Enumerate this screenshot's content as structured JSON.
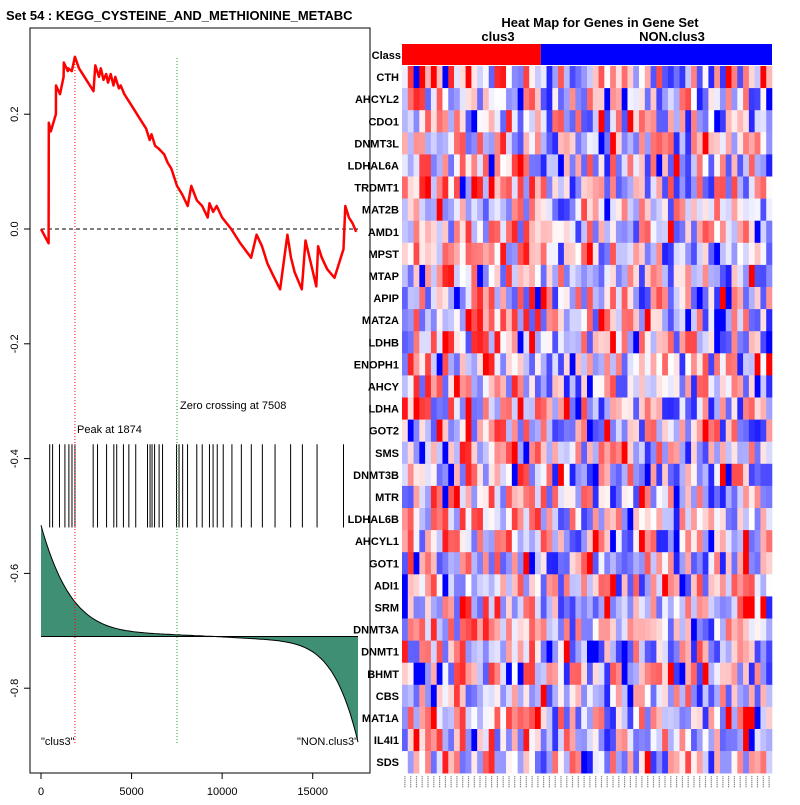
{
  "title": "Set  54 : KEGG_CYSTEINE_AND_METHIONINE_METABC",
  "chart_data": [
    {
      "type": "line",
      "name": "enrichment-score-plot",
      "x_ticks": [
        0,
        5000,
        10000,
        15000
      ],
      "x_tick_labels": [
        "0",
        "5000",
        "10000",
        "15000"
      ],
      "xlim": [
        0,
        17500
      ],
      "y_ticks": [
        0.2,
        0.0,
        -0.2,
        -0.4,
        -0.6,
        -0.8
      ],
      "y_tick_labels": [
        "0.2",
        "0.0",
        "-0.2",
        "-0.4",
        "-0.6",
        "-0.8"
      ],
      "ylim": [
        -0.9,
        0.33
      ],
      "running_es": {
        "x": [
          0,
          420,
          430,
          540,
          820,
          830,
          1050,
          1250,
          1260,
          1480,
          1490,
          1700,
          1874,
          2100,
          2500,
          2900,
          3000,
          3200,
          3300,
          3450,
          3600,
          3700,
          3850,
          4000,
          4100,
          4300,
          4400,
          4600,
          5000,
          5400,
          5800,
          6000,
          6100,
          6300,
          6500,
          6800,
          7000,
          7200,
          7508,
          7800,
          8100,
          8300,
          8600,
          8900,
          9200,
          9300,
          9500,
          9700,
          10000,
          10500,
          11000,
          11600,
          11900,
          12200,
          12500,
          12800,
          13200,
          13600,
          13800,
          14000,
          14400,
          14600,
          15200,
          15300,
          15500,
          15800,
          16200,
          16700,
          16800,
          17000,
          17200,
          17400
        ],
        "y": [
          0.0,
          -0.025,
          0.185,
          0.17,
          0.2,
          0.25,
          0.235,
          0.265,
          0.29,
          0.275,
          0.28,
          0.275,
          0.3,
          0.28,
          0.26,
          0.24,
          0.285,
          0.265,
          0.28,
          0.26,
          0.27,
          0.255,
          0.27,
          0.25,
          0.265,
          0.245,
          0.25,
          0.235,
          0.215,
          0.195,
          0.175,
          0.155,
          0.165,
          0.145,
          0.14,
          0.13,
          0.115,
          0.105,
          0.075,
          0.06,
          0.04,
          0.075,
          0.05,
          0.04,
          0.02,
          0.045,
          0.03,
          0.04,
          0.02,
          0.0,
          -0.025,
          -0.05,
          -0.01,
          -0.03,
          -0.06,
          -0.08,
          -0.105,
          -0.01,
          -0.05,
          -0.075,
          -0.105,
          -0.02,
          -0.1,
          -0.03,
          -0.05,
          -0.07,
          -0.085,
          -0.035,
          0.04,
          0.02,
          0.01,
          -0.005
        ]
      },
      "baseline_y": 0.0,
      "peak": {
        "x": 1874,
        "label": "Peak at 1874",
        "color": "#ff0000"
      },
      "zero_crossing": {
        "x": 7508,
        "label": "Zero crossing at 7508",
        "color": "#22aa22"
      },
      "hits_x": [
        480,
        640,
        1020,
        1320,
        1540,
        1710,
        1874,
        2880,
        3120,
        3620,
        4020,
        4180,
        4550,
        4850,
        5230,
        5880,
        6020,
        6130,
        6270,
        6520,
        6710,
        7480,
        7620,
        7820,
        8090,
        8600,
        8900,
        9300,
        9500,
        9730,
        10060,
        10540,
        11060,
        11610,
        12220,
        12920,
        13780,
        14430,
        15240,
        16700
      ],
      "hits_y_range": [
        -0.52,
        -0.375
      ],
      "ranked_metric": {
        "zero_y": -0.71,
        "top_y": -0.53,
        "bottom_y": -0.88,
        "color": "#3e8f74"
      },
      "class_labels": [
        "\"clus3\"",
        "\"NON.clus3\""
      ],
      "line_color": "#ff0000"
    },
    {
      "type": "heatmap",
      "name": "gene-set-heatmap",
      "title": "Heat Map for Genes in Gene Set",
      "class_row_label": "Class",
      "groups": [
        {
          "label": "clus3",
          "columns": 24,
          "color": "#ff0000"
        },
        {
          "label": "NON.clus3",
          "columns": 40,
          "color": "#0000ff"
        }
      ],
      "genes": [
        "CTH",
        "AHCYL2",
        "CDO1",
        "DNMT3L",
        "LDHAL6A",
        "TRDMT1",
        "MAT2B",
        "AMD1",
        "MPST",
        "MTAP",
        "APIP",
        "MAT2A",
        "LDHB",
        "ENOPH1",
        "AHCY",
        "LDHA",
        "GOT2",
        "SMS",
        "DNMT3B",
        "MTR",
        "LDHAL6B",
        "AHCYL1",
        "GOT1",
        "ADI1",
        "SRM",
        "DNMT3A",
        "DNMT1",
        "BHMT",
        "CBS",
        "MAT1A",
        "IL4I1",
        "SDS"
      ],
      "value_range": [
        -1,
        1
      ],
      "colors": {
        "low": "#0000ff",
        "mid": "#ffffff",
        "high": "#ff0000"
      },
      "seed": 54
    }
  ]
}
